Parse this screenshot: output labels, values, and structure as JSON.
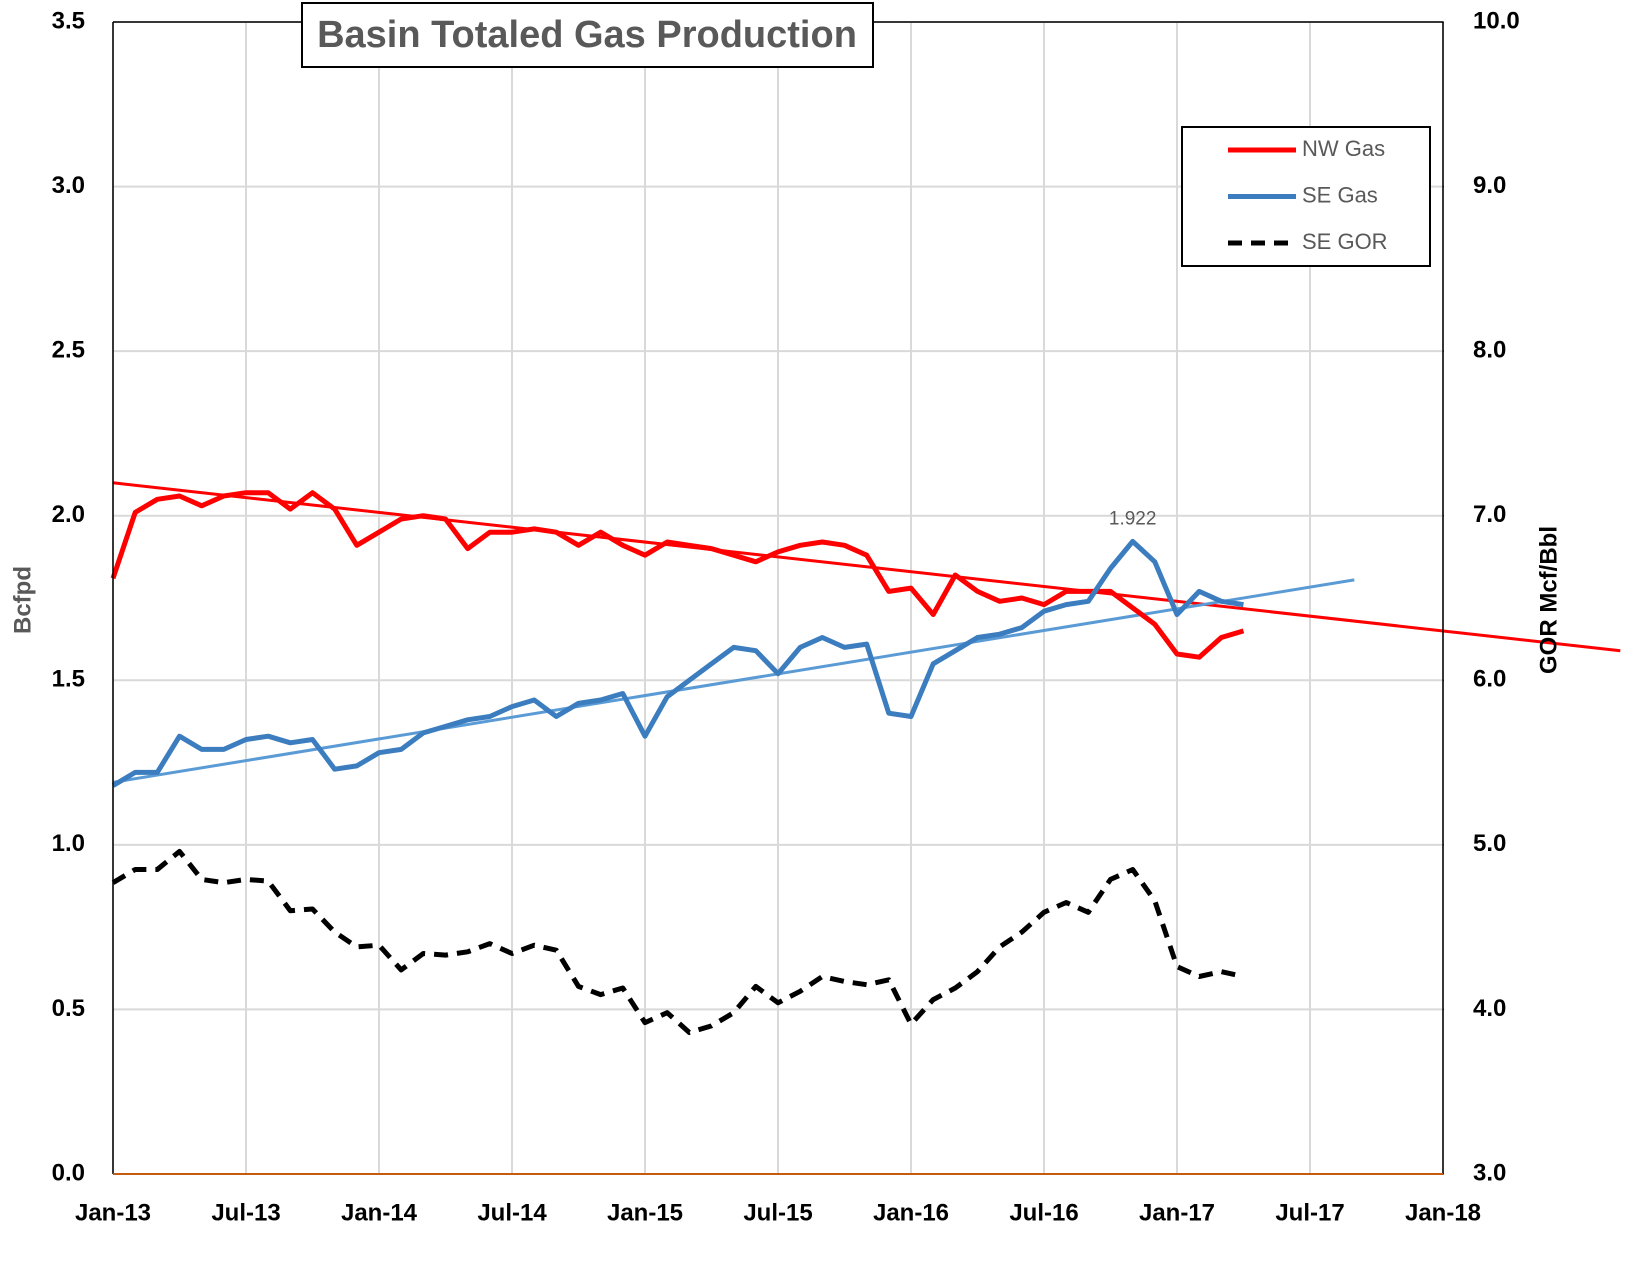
{
  "chart_data": {
    "type": "line",
    "title": "Basin Totaled Gas Production",
    "y_label": "Bcfpd",
    "y2_label": "GOR Mcf/Bbl",
    "x": [
      "2013-01",
      "2013-02",
      "2013-03",
      "2013-04",
      "2013-05",
      "2013-06",
      "2013-07",
      "2013-08",
      "2013-09",
      "2013-10",
      "2013-11",
      "2013-12",
      "2014-01",
      "2014-02",
      "2014-03",
      "2014-04",
      "2014-05",
      "2014-06",
      "2014-07",
      "2014-08",
      "2014-09",
      "2014-10",
      "2014-11",
      "2014-12",
      "2015-01",
      "2015-02",
      "2015-03",
      "2015-04",
      "2015-05",
      "2015-06",
      "2015-07",
      "2015-08",
      "2015-09",
      "2015-10",
      "2015-11",
      "2015-12",
      "2016-01",
      "2016-02",
      "2016-03",
      "2016-04",
      "2016-05",
      "2016-06",
      "2016-07",
      "2016-08",
      "2016-09",
      "2016-10",
      "2016-11",
      "2016-12",
      "2017-01",
      "2017-02",
      "2017-03",
      "2017-04"
    ],
    "series": [
      {
        "name": "NW Gas",
        "color": "#ff0000",
        "dash": false,
        "values": [
          1.81,
          2.01,
          2.05,
          2.06,
          2.03,
          2.06,
          2.07,
          2.07,
          2.02,
          2.07,
          2.02,
          1.91,
          1.95,
          1.99,
          2.0,
          1.99,
          1.9,
          1.95,
          1.95,
          1.96,
          1.95,
          1.91,
          1.95,
          1.91,
          1.88,
          1.92,
          1.91,
          1.9,
          1.88,
          1.86,
          1.89,
          1.91,
          1.92,
          1.91,
          1.88,
          1.77,
          1.78,
          1.7,
          1.82,
          1.77,
          1.74,
          1.75,
          1.73,
          1.77,
          1.77,
          1.77,
          1.72,
          1.67,
          1.58,
          1.57,
          1.63,
          1.65
        ]
      },
      {
        "name": "SE Gas",
        "color": "#3b7dbf",
        "dash": false,
        "values": [
          1.18,
          1.22,
          1.22,
          1.33,
          1.29,
          1.29,
          1.32,
          1.33,
          1.31,
          1.32,
          1.23,
          1.24,
          1.28,
          1.29,
          1.34,
          1.36,
          1.38,
          1.39,
          1.42,
          1.44,
          1.39,
          1.43,
          1.44,
          1.46,
          1.33,
          1.45,
          1.5,
          1.55,
          1.6,
          1.59,
          1.52,
          1.6,
          1.63,
          1.6,
          1.61,
          1.4,
          1.39,
          1.55,
          1.59,
          1.63,
          1.64,
          1.66,
          1.71,
          1.73,
          1.74,
          1.84,
          1.922,
          1.86,
          1.7,
          1.77,
          1.74,
          1.73
        ],
        "value_labels": [
          null,
          null,
          null,
          null,
          null,
          null,
          null,
          null,
          null,
          null,
          null,
          null,
          null,
          null,
          null,
          null,
          null,
          null,
          null,
          null,
          null,
          null,
          null,
          null,
          null,
          null,
          null,
          null,
          null,
          null,
          null,
          null,
          null,
          null,
          null,
          null,
          null,
          null,
          null,
          null,
          null,
          null,
          null,
          null,
          null,
          null,
          "1.922",
          null,
          null,
          null,
          null,
          null
        ]
      },
      {
        "name": "SE GOR",
        "color": "#000000",
        "dash": true,
        "axis": "y2",
        "values": [
          4.77,
          4.85,
          4.85,
          4.96,
          4.79,
          4.77,
          4.79,
          4.78,
          4.6,
          4.61,
          4.47,
          4.38,
          4.39,
          4.24,
          4.34,
          4.33,
          4.35,
          4.4,
          4.34,
          4.39,
          4.36,
          4.14,
          4.09,
          4.13,
          3.92,
          3.98,
          3.86,
          3.9,
          3.98,
          4.14,
          4.04,
          4.11,
          4.2,
          4.17,
          4.15,
          4.18,
          3.91,
          4.06,
          4.13,
          4.23,
          4.38,
          4.47,
          4.59,
          4.65,
          4.59,
          4.79,
          4.85,
          4.66,
          4.26,
          4.2,
          4.23,
          4.2
        ]
      }
    ],
    "trendlines": [
      {
        "color": "#ff0000",
        "x": [
          "2013-01",
          "2018-09"
        ],
        "values": [
          2.1,
          1.59
        ]
      },
      {
        "color": "#5b9bd5",
        "x": [
          "2013-01",
          "2017-09"
        ],
        "values": [
          1.19,
          1.805
        ]
      }
    ],
    "xlim": [
      "2013-01",
      "2018-01"
    ],
    "xticks": [
      {
        "value": "2013-01",
        "label": "Jan-13"
      },
      {
        "value": "2013-07",
        "label": "Jul-13"
      },
      {
        "value": "2014-01",
        "label": "Jan-14"
      },
      {
        "value": "2014-07",
        "label": "Jul-14"
      },
      {
        "value": "2015-01",
        "label": "Jan-15"
      },
      {
        "value": "2015-07",
        "label": "Jul-15"
      },
      {
        "value": "2016-01",
        "label": "Jan-16"
      },
      {
        "value": "2016-07",
        "label": "Jul-16"
      },
      {
        "value": "2017-01",
        "label": "Jan-17"
      },
      {
        "value": "2017-07",
        "label": "Jul-17"
      },
      {
        "value": "2018-01",
        "label": "Jan-18"
      }
    ],
    "ylim": [
      0,
      3.5
    ],
    "yticks": [
      {
        "value": 0,
        "label": "0.0"
      },
      0.5,
      {
        "value": 1,
        "label": "1.0"
      },
      1.5,
      {
        "value": 2,
        "label": "2.0"
      },
      2.5,
      {
        "value": 3,
        "label": "3.0"
      },
      3.5
    ],
    "y2lim": [
      3,
      10
    ],
    "y2ticks": [
      {
        "value": 3,
        "label": "3.0"
      },
      {
        "value": 4,
        "label": "4.0"
      },
      {
        "value": 5,
        "label": "5.0"
      },
      {
        "value": 6,
        "label": "6.0"
      },
      {
        "value": 7,
        "label": "7.0"
      },
      {
        "value": 8,
        "label": "8.0"
      },
      {
        "value": 9,
        "label": "9.0"
      },
      {
        "value": 10,
        "label": "10.0"
      }
    ],
    "grid": true,
    "legend": "upper right"
  }
}
